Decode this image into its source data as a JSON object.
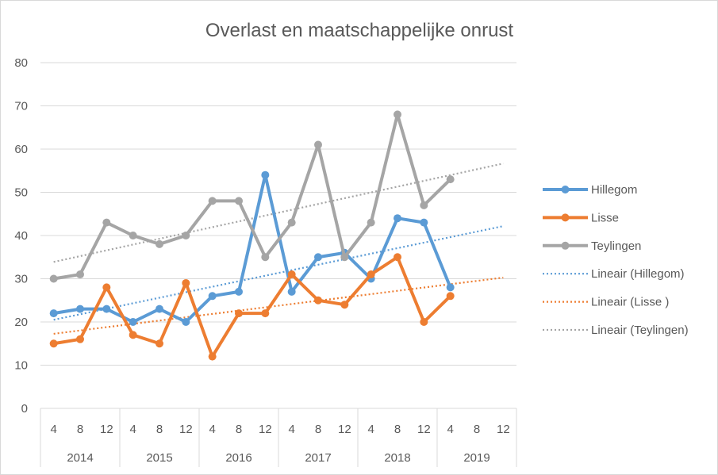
{
  "chart_data": {
    "type": "line",
    "title": "Overlast en maatschappelijke onrust",
    "xlabel": "",
    "ylabel": "",
    "ylim": [
      0,
      80
    ],
    "y_ticks": [
      0,
      10,
      20,
      30,
      40,
      50,
      60,
      70,
      80
    ],
    "grid": true,
    "legend_position": "right",
    "categories": [
      "4",
      "8",
      "12",
      "4",
      "8",
      "12",
      "4",
      "8",
      "12",
      "4",
      "8",
      "12",
      "4",
      "8",
      "12",
      "4",
      "8",
      "12"
    ],
    "category_groups": [
      {
        "label": "2014",
        "size": 3
      },
      {
        "label": "2015",
        "size": 3
      },
      {
        "label": "2016",
        "size": 3
      },
      {
        "label": "2017",
        "size": 3
      },
      {
        "label": "2018",
        "size": 3
      },
      {
        "label": "2019",
        "size": 3
      }
    ],
    "series": [
      {
        "name": "Hillegom",
        "color": "#5b9bd5",
        "values": [
          22,
          23,
          23,
          20,
          23,
          20,
          26,
          27,
          54,
          27,
          35,
          36,
          30,
          44,
          43,
          28,
          null,
          null
        ]
      },
      {
        "name": "Lisse",
        "color": "#ed7d31",
        "values": [
          15,
          16,
          28,
          17,
          15,
          29,
          12,
          22,
          22,
          31,
          25,
          24,
          31,
          35,
          20,
          26,
          null,
          null
        ]
      },
      {
        "name": "Teylingen",
        "color": "#a5a5a5",
        "values": [
          30,
          31,
          43,
          40,
          38,
          40,
          48,
          48,
          35,
          43,
          61,
          35,
          43,
          68,
          47,
          53,
          null,
          null
        ]
      }
    ],
    "trendlines": [
      {
        "name": "Lineair (Hillegom)",
        "series": "Hillegom",
        "color": "#5b9bd5",
        "type": "linear"
      },
      {
        "name": "Lineair (Lisse )",
        "series": "Lisse",
        "color": "#ed7d31",
        "type": "linear"
      },
      {
        "name": "Lineair (Teylingen)",
        "series": "Teylingen",
        "color": "#a5a5a5",
        "type": "linear"
      }
    ],
    "gridline_color": "#d9d9d9",
    "text_color": "#595959"
  }
}
